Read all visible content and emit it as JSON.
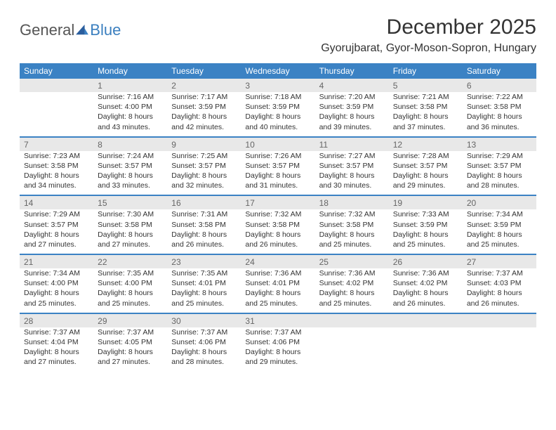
{
  "logo": {
    "part1": "General",
    "part2": "Blue"
  },
  "title": "December 2025",
  "location": "Gyorujbarat, Gyor-Moson-Sopron, Hungary",
  "day_names": [
    "Sunday",
    "Monday",
    "Tuesday",
    "Wednesday",
    "Thursday",
    "Friday",
    "Saturday"
  ],
  "colors": {
    "header_bg": "#3b82c4",
    "header_text": "#ffffff",
    "daynum_bg": "#e8e8e8",
    "rule": "#3b82c4",
    "text": "#333333"
  },
  "weeks": [
    [
      null,
      {
        "n": "1",
        "sr": "Sunrise: 7:16 AM",
        "ss": "Sunset: 4:00 PM",
        "dl": "Daylight: 8 hours and 43 minutes."
      },
      {
        "n": "2",
        "sr": "Sunrise: 7:17 AM",
        "ss": "Sunset: 3:59 PM",
        "dl": "Daylight: 8 hours and 42 minutes."
      },
      {
        "n": "3",
        "sr": "Sunrise: 7:18 AM",
        "ss": "Sunset: 3:59 PM",
        "dl": "Daylight: 8 hours and 40 minutes."
      },
      {
        "n": "4",
        "sr": "Sunrise: 7:20 AM",
        "ss": "Sunset: 3:59 PM",
        "dl": "Daylight: 8 hours and 39 minutes."
      },
      {
        "n": "5",
        "sr": "Sunrise: 7:21 AM",
        "ss": "Sunset: 3:58 PM",
        "dl": "Daylight: 8 hours and 37 minutes."
      },
      {
        "n": "6",
        "sr": "Sunrise: 7:22 AM",
        "ss": "Sunset: 3:58 PM",
        "dl": "Daylight: 8 hours and 36 minutes."
      }
    ],
    [
      {
        "n": "7",
        "sr": "Sunrise: 7:23 AM",
        "ss": "Sunset: 3:58 PM",
        "dl": "Daylight: 8 hours and 34 minutes."
      },
      {
        "n": "8",
        "sr": "Sunrise: 7:24 AM",
        "ss": "Sunset: 3:57 PM",
        "dl": "Daylight: 8 hours and 33 minutes."
      },
      {
        "n": "9",
        "sr": "Sunrise: 7:25 AM",
        "ss": "Sunset: 3:57 PM",
        "dl": "Daylight: 8 hours and 32 minutes."
      },
      {
        "n": "10",
        "sr": "Sunrise: 7:26 AM",
        "ss": "Sunset: 3:57 PM",
        "dl": "Daylight: 8 hours and 31 minutes."
      },
      {
        "n": "11",
        "sr": "Sunrise: 7:27 AM",
        "ss": "Sunset: 3:57 PM",
        "dl": "Daylight: 8 hours and 30 minutes."
      },
      {
        "n": "12",
        "sr": "Sunrise: 7:28 AM",
        "ss": "Sunset: 3:57 PM",
        "dl": "Daylight: 8 hours and 29 minutes."
      },
      {
        "n": "13",
        "sr": "Sunrise: 7:29 AM",
        "ss": "Sunset: 3:57 PM",
        "dl": "Daylight: 8 hours and 28 minutes."
      }
    ],
    [
      {
        "n": "14",
        "sr": "Sunrise: 7:29 AM",
        "ss": "Sunset: 3:57 PM",
        "dl": "Daylight: 8 hours and 27 minutes."
      },
      {
        "n": "15",
        "sr": "Sunrise: 7:30 AM",
        "ss": "Sunset: 3:58 PM",
        "dl": "Daylight: 8 hours and 27 minutes."
      },
      {
        "n": "16",
        "sr": "Sunrise: 7:31 AM",
        "ss": "Sunset: 3:58 PM",
        "dl": "Daylight: 8 hours and 26 minutes."
      },
      {
        "n": "17",
        "sr": "Sunrise: 7:32 AM",
        "ss": "Sunset: 3:58 PM",
        "dl": "Daylight: 8 hours and 26 minutes."
      },
      {
        "n": "18",
        "sr": "Sunrise: 7:32 AM",
        "ss": "Sunset: 3:58 PM",
        "dl": "Daylight: 8 hours and 25 minutes."
      },
      {
        "n": "19",
        "sr": "Sunrise: 7:33 AM",
        "ss": "Sunset: 3:59 PM",
        "dl": "Daylight: 8 hours and 25 minutes."
      },
      {
        "n": "20",
        "sr": "Sunrise: 7:34 AM",
        "ss": "Sunset: 3:59 PM",
        "dl": "Daylight: 8 hours and 25 minutes."
      }
    ],
    [
      {
        "n": "21",
        "sr": "Sunrise: 7:34 AM",
        "ss": "Sunset: 4:00 PM",
        "dl": "Daylight: 8 hours and 25 minutes."
      },
      {
        "n": "22",
        "sr": "Sunrise: 7:35 AM",
        "ss": "Sunset: 4:00 PM",
        "dl": "Daylight: 8 hours and 25 minutes."
      },
      {
        "n": "23",
        "sr": "Sunrise: 7:35 AM",
        "ss": "Sunset: 4:01 PM",
        "dl": "Daylight: 8 hours and 25 minutes."
      },
      {
        "n": "24",
        "sr": "Sunrise: 7:36 AM",
        "ss": "Sunset: 4:01 PM",
        "dl": "Daylight: 8 hours and 25 minutes."
      },
      {
        "n": "25",
        "sr": "Sunrise: 7:36 AM",
        "ss": "Sunset: 4:02 PM",
        "dl": "Daylight: 8 hours and 25 minutes."
      },
      {
        "n": "26",
        "sr": "Sunrise: 7:36 AM",
        "ss": "Sunset: 4:02 PM",
        "dl": "Daylight: 8 hours and 26 minutes."
      },
      {
        "n": "27",
        "sr": "Sunrise: 7:37 AM",
        "ss": "Sunset: 4:03 PM",
        "dl": "Daylight: 8 hours and 26 minutes."
      }
    ],
    [
      {
        "n": "28",
        "sr": "Sunrise: 7:37 AM",
        "ss": "Sunset: 4:04 PM",
        "dl": "Daylight: 8 hours and 27 minutes."
      },
      {
        "n": "29",
        "sr": "Sunrise: 7:37 AM",
        "ss": "Sunset: 4:05 PM",
        "dl": "Daylight: 8 hours and 27 minutes."
      },
      {
        "n": "30",
        "sr": "Sunrise: 7:37 AM",
        "ss": "Sunset: 4:06 PM",
        "dl": "Daylight: 8 hours and 28 minutes."
      },
      {
        "n": "31",
        "sr": "Sunrise: 7:37 AM",
        "ss": "Sunset: 4:06 PM",
        "dl": "Daylight: 8 hours and 29 minutes."
      },
      null,
      null,
      null
    ]
  ]
}
